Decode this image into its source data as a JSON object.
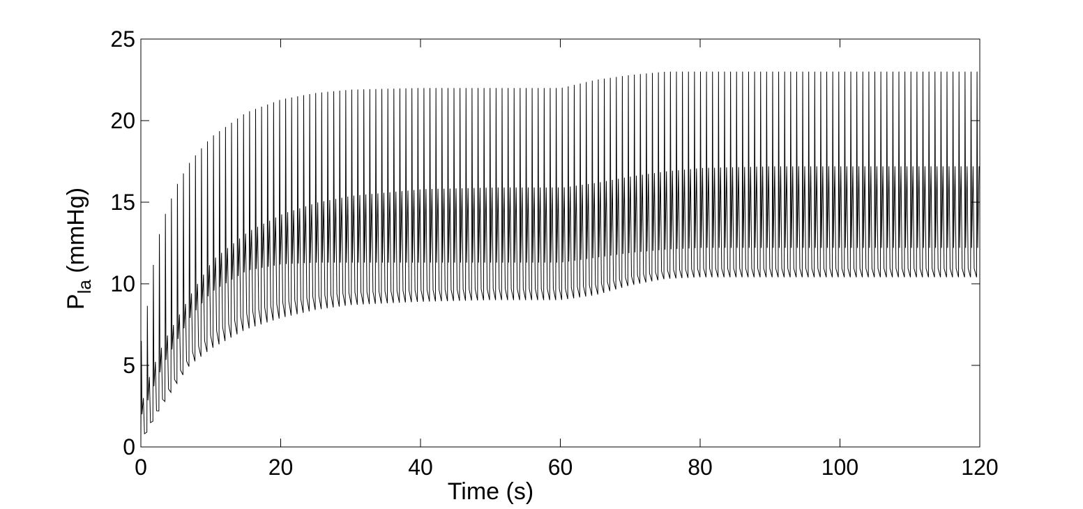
{
  "chart_data": {
    "type": "line",
    "title": "",
    "xlabel": "Time (s)",
    "ylabel_main": "P",
    "ylabel_sub": "la",
    "ylabel_unit": " (mmHg)",
    "xlim": [
      0,
      120
    ],
    "ylim": [
      0,
      25
    ],
    "xticks": [
      0,
      20,
      40,
      60,
      80,
      100,
      120
    ],
    "yticks": [
      0,
      5,
      10,
      15,
      20,
      25
    ],
    "grid": false,
    "line_color": "#000000",
    "waveform": {
      "description_of_values": "envelope of oscillating pressure signal sampled at time t (s)",
      "t": [
        0,
        1,
        2,
        3,
        5,
        7,
        10,
        15,
        20,
        25,
        30,
        40,
        50,
        60,
        65,
        70,
        75,
        80,
        90,
        100,
        110,
        120
      ],
      "max": [
        6.5,
        9.0,
        12.0,
        13.8,
        16.0,
        17.5,
        19.0,
        20.5,
        21.3,
        21.7,
        21.9,
        22.0,
        22.0,
        22.0,
        22.5,
        22.8,
        23.0,
        23.0,
        23.0,
        23.0,
        23.0,
        23.0
      ],
      "mid_high": [
        3.0,
        4.5,
        5.5,
        6.5,
        8.0,
        9.5,
        11.5,
        13.2,
        14.3,
        15.0,
        15.4,
        15.8,
        15.9,
        15.9,
        16.2,
        16.6,
        16.9,
        17.1,
        17.2,
        17.2,
        17.2,
        17.2
      ],
      "mid_low": [
        2.0,
        3.0,
        4.0,
        5.0,
        6.5,
        8.0,
        9.5,
        10.8,
        11.2,
        11.3,
        11.3,
        11.3,
        11.3,
        11.3,
        11.6,
        11.9,
        12.1,
        12.2,
        12.2,
        12.2,
        12.2,
        12.2
      ],
      "min": [
        0.3,
        1.0,
        1.8,
        2.5,
        3.8,
        5.0,
        6.0,
        7.2,
        7.9,
        8.4,
        8.7,
        8.9,
        9.0,
        9.0,
        9.3,
        9.9,
        10.3,
        10.4,
        10.4,
        10.4,
        10.4,
        10.4
      ]
    }
  }
}
